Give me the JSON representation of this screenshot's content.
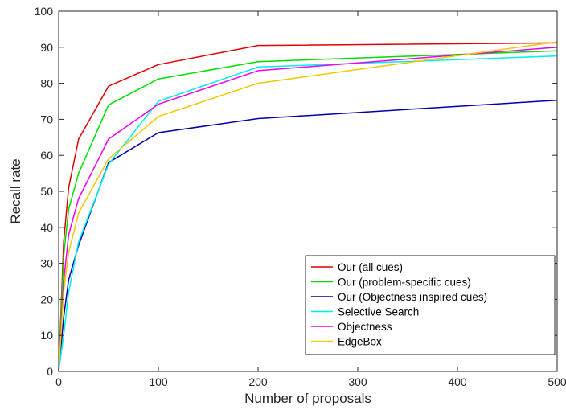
{
  "chart_data": {
    "type": "line",
    "xlabel": "Number of proposals",
    "ylabel": "Recall rate",
    "xlim": [
      0,
      500
    ],
    "ylim": [
      0,
      100
    ],
    "xticks": [
      0,
      100,
      200,
      300,
      400,
      500
    ],
    "yticks": [
      0,
      10,
      20,
      30,
      40,
      50,
      60,
      70,
      80,
      90,
      100
    ],
    "grid": false,
    "legend_position": "bottom-right",
    "series": [
      {
        "name": "Our (all cues)",
        "color": "#e00000",
        "x": [
          0,
          5,
          10,
          20,
          50,
          100,
          200,
          500
        ],
        "y": [
          0,
          36,
          51,
          64.5,
          79.2,
          85.2,
          90.5,
          91.2
        ]
      },
      {
        "name": "Our (problem-specific cues)",
        "color": "#00dd00",
        "x": [
          0,
          5,
          10,
          20,
          50,
          100,
          200,
          500
        ],
        "y": [
          0,
          32,
          45,
          55,
          74,
          81.2,
          86,
          89
        ]
      },
      {
        "name": "Our (Objectness inspired cues)",
        "color": "#0000aa",
        "x": [
          0,
          5,
          10,
          20,
          50,
          100,
          200,
          500
        ],
        "y": [
          0,
          15,
          25.5,
          35,
          58,
          66.3,
          70.2,
          75.3
        ]
      },
      {
        "name": "Selective Search",
        "color": "#00eeee",
        "x": [
          0,
          5,
          10,
          20,
          50,
          100,
          200,
          500
        ],
        "y": [
          0,
          10,
          22,
          36,
          57.5,
          75,
          84.5,
          87.6
        ]
      },
      {
        "name": "Objectness",
        "color": "#ee00ee",
        "x": [
          0,
          5,
          10,
          20,
          50,
          100,
          200,
          500
        ],
        "y": [
          0,
          25,
          38,
          48,
          64.5,
          74.2,
          83.5,
          90
        ]
      },
      {
        "name": "EdgeBox",
        "color": "#f0c800",
        "x": [
          0,
          5,
          10,
          20,
          50,
          100,
          200,
          500
        ],
        "y": [
          0,
          22,
          33,
          44,
          59,
          70.8,
          80,
          91.5
        ]
      }
    ]
  }
}
